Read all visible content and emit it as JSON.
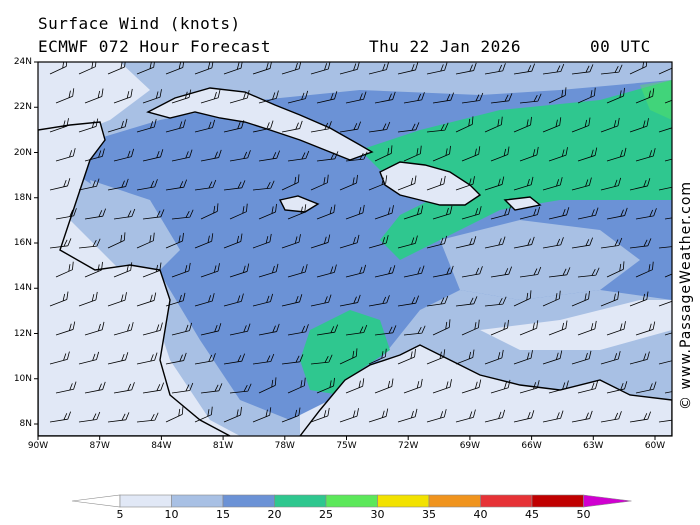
{
  "header": {
    "title": "Surface Wind (knots)",
    "model": "ECMWF 072 Hour Forecast",
    "date": "Thu 22 Jan 2026",
    "time": "00 UTC"
  },
  "credit": "© www.PassageWeather.com",
  "lat_labels": [
    "24N",
    "22N",
    "20N",
    "18N",
    "16N",
    "14N",
    "12N",
    "10N",
    "8N"
  ],
  "lon_labels": [
    "90W",
    "87W",
    "84W",
    "81W",
    "78W",
    "75W",
    "72W",
    "69W",
    "66W",
    "63W",
    "60W"
  ],
  "scale": {
    "labels": [
      "5",
      "10",
      "15",
      "20",
      "25",
      "30",
      "35",
      "40",
      "45",
      "50"
    ],
    "colors": [
      "#ffffff",
      "#e1e8f6",
      "#a8c0e4",
      "#6b92d6",
      "#2fc78f",
      "#5ce85a",
      "#f2e200",
      "#f0941e",
      "#e63236",
      "#c00000",
      "#d000d0"
    ]
  }
}
